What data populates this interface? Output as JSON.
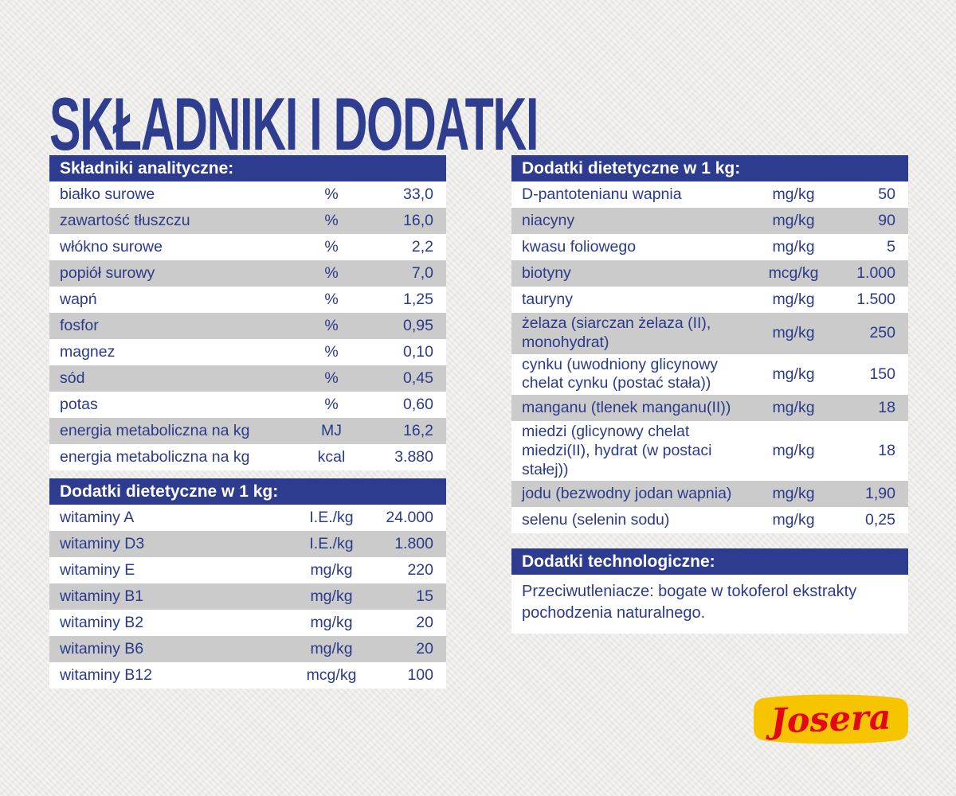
{
  "title": "SKŁADNIKI I DODATKI",
  "colors": {
    "accent_blue": "#2d3c8e",
    "text_blue": "#2b3a8a",
    "row_alt_gray": "#cbcbcb",
    "row_white": "#ffffff",
    "background": "#ecebe8",
    "logo_yellow": "#f6c500",
    "logo_red": "#e30613"
  },
  "tables": [
    {
      "header": "Składniki analityczne:",
      "rows": [
        {
          "label": "białko surowe",
          "unit": "%",
          "value": "33,0"
        },
        {
          "label": "zawartość tłuszczu",
          "unit": "%",
          "value": "16,0"
        },
        {
          "label": "włókno surowe",
          "unit": "%",
          "value": "2,2"
        },
        {
          "label": "popiół surowy",
          "unit": "%",
          "value": "7,0"
        },
        {
          "label": "wapń",
          "unit": "%",
          "value": "1,25"
        },
        {
          "label": "fosfor",
          "unit": "%",
          "value": "0,95"
        },
        {
          "label": "magnez",
          "unit": "%",
          "value": "0,10"
        },
        {
          "label": "sód",
          "unit": "%",
          "value": "0,45"
        },
        {
          "label": "potas",
          "unit": "%",
          "value": "0,60"
        },
        {
          "label": "energia metaboliczna na kg",
          "unit": "MJ",
          "value": "16,2"
        },
        {
          "label": "energia metaboliczna na kg",
          "unit": "kcal",
          "value": "3.880"
        }
      ]
    },
    {
      "header": "Dodatki dietetyczne w 1 kg:",
      "rows": [
        {
          "label": "witaminy A",
          "unit": "I.E./kg",
          "value": "24.000"
        },
        {
          "label": "witaminy D3",
          "unit": "I.E./kg",
          "value": "1.800"
        },
        {
          "label": "witaminy E",
          "unit": "mg/kg",
          "value": "220"
        },
        {
          "label": "witaminy B1",
          "unit": "mg/kg",
          "value": "15"
        },
        {
          "label": "witaminy B2",
          "unit": "mg/kg",
          "value": "20"
        },
        {
          "label": "witaminy B6",
          "unit": "mg/kg",
          "value": "20"
        },
        {
          "label": "witaminy B12",
          "unit": "mcg/kg",
          "value": "100"
        }
      ]
    },
    {
      "header": "Dodatki dietetyczne w 1 kg:",
      "rows": [
        {
          "label": "D-pantotenianu wapnia",
          "unit": "mg/kg",
          "value": "50"
        },
        {
          "label": "niacyny",
          "unit": "mg/kg",
          "value": "90"
        },
        {
          "label": "kwasu foliowego",
          "unit": "mg/kg",
          "value": "5"
        },
        {
          "label": "biotyny",
          "unit": "mcg/kg",
          "value": "1.000"
        },
        {
          "label": "tauryny",
          "unit": "mg/kg",
          "value": "1.500"
        },
        {
          "label": "żelaza (siarczan żelaza (II), monohydrat)",
          "unit": "mg/kg",
          "value": "250"
        },
        {
          "label": "cynku (uwodniony glicynowy chelat cynku (postać stała))",
          "unit": "mg/kg",
          "value": "150"
        },
        {
          "label": "manganu (tlenek manganu(II))",
          "unit": "mg/kg",
          "value": "18"
        },
        {
          "label": "miedzi (glicynowy chelat miedzi(II), hydrat (w postaci stałej))",
          "unit": "mg/kg",
          "value": "18"
        },
        {
          "label": "jodu (bezwodny jodan wapnia)",
          "unit": "mg/kg",
          "value": "1,90"
        },
        {
          "label": "selenu (selenin sodu)",
          "unit": "mg/kg",
          "value": "0,25"
        }
      ]
    }
  ],
  "technological": {
    "header": "Dodatki technologiczne:",
    "text": "Przeciwutleniacze: bogate w tokoferol ekstrakty pochodzenia naturalnego."
  },
  "logo": {
    "text": "Josera"
  }
}
